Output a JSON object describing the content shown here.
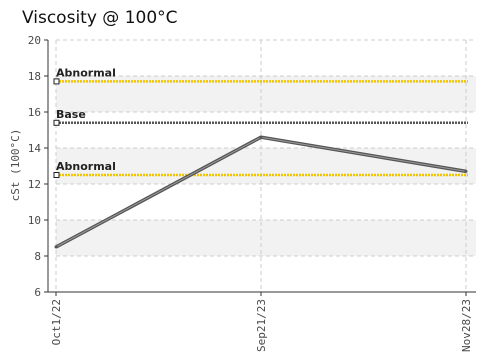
{
  "chart_data": {
    "type": "line",
    "title": "Viscosity @ 100°C",
    "ylabel": "cSt (100°C)",
    "xlabel": "",
    "ylim": [
      6,
      20
    ],
    "yticks": [
      6,
      8,
      10,
      12,
      14,
      16,
      18,
      20
    ],
    "categories": [
      "Oct1/22",
      "Sep21/23",
      "Nov28/23"
    ],
    "series": [
      {
        "values": [
          8.5,
          14.6,
          12.7
        ]
      }
    ],
    "reference_lines": [
      {
        "label": "Abnormal",
        "value": 17.7
      },
      {
        "label": "Base",
        "value": 15.4
      },
      {
        "label": "Abnormal",
        "value": 12.5
      }
    ],
    "bands": [
      [
        16,
        18
      ],
      [
        12,
        14
      ],
      [
        8,
        10
      ]
    ],
    "grid": true,
    "colors": {
      "series": "#555555",
      "abnormal": "#f2c200",
      "base": "#555555",
      "band": "#f2f2f2",
      "grid": "#cccccc",
      "axis": "#333333"
    }
  }
}
